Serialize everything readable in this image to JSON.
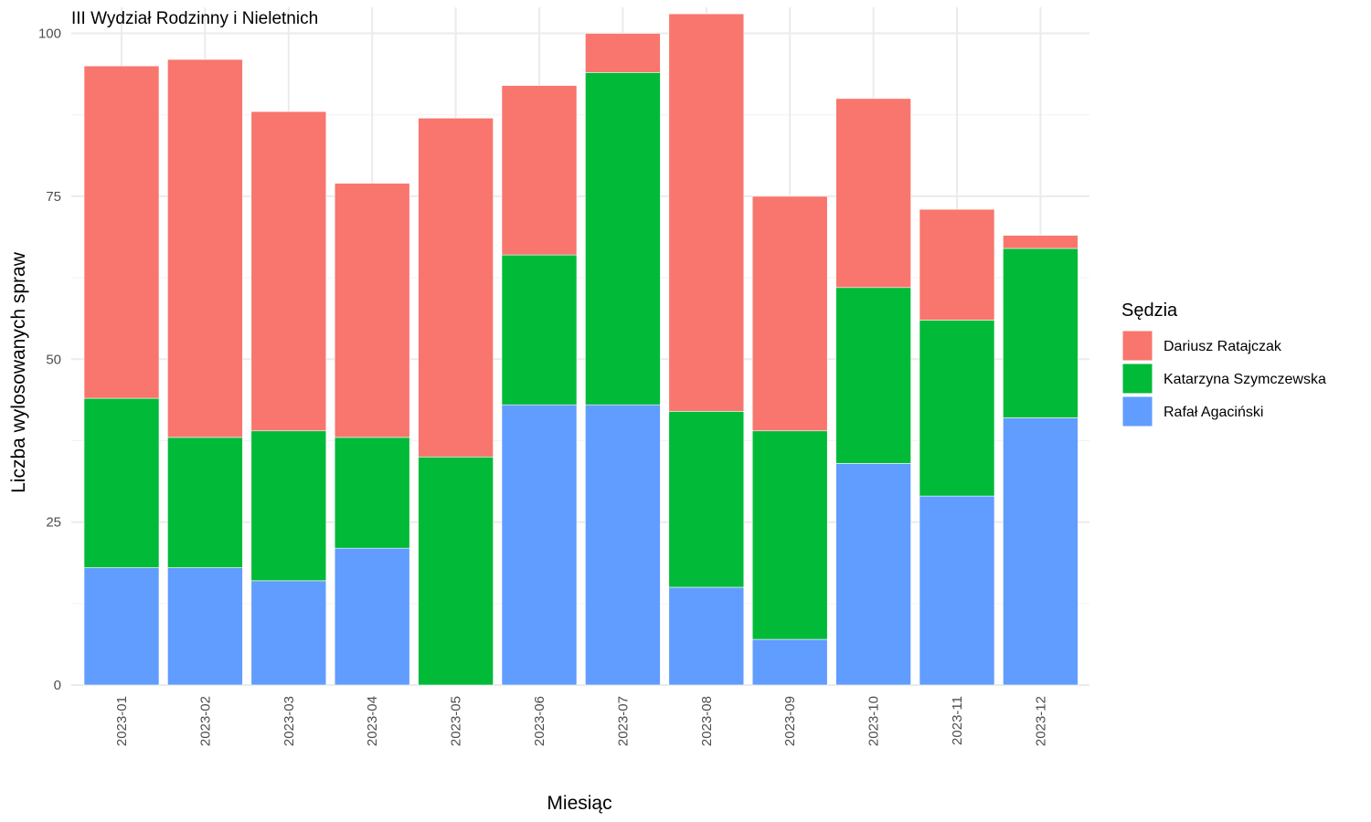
{
  "chart_data": {
    "type": "bar",
    "stacked": true,
    "title": "III Wydział Rodzinny i Nieletnich",
    "xlabel": "Miesiąc",
    "ylabel": "Liczba wylosowanych spraw",
    "ylim": [
      0,
      104
    ],
    "yticks": [
      0,
      25,
      50,
      75,
      100
    ],
    "grid": true,
    "legend_title": "Sędzia",
    "legend_position": "right",
    "categories": [
      "2023-01",
      "2023-02",
      "2023-03",
      "2023-04",
      "2023-05",
      "2023-06",
      "2023-07",
      "2023-08",
      "2023-09",
      "2023-10",
      "2023-11",
      "2023-12"
    ],
    "series": [
      {
        "name": "Rafał Agaciński",
        "color": "#619CFF",
        "values": [
          18,
          18,
          16,
          21,
          0,
          43,
          43,
          15,
          7,
          34,
          29,
          41
        ]
      },
      {
        "name": "Katarzyna Szymczewska",
        "color": "#00BA38",
        "values": [
          26,
          20,
          23,
          17,
          35,
          23,
          51,
          27,
          32,
          27,
          27,
          26
        ]
      },
      {
        "name": "Dariusz Ratajczak",
        "color": "#F8766D",
        "values": [
          51,
          58,
          49,
          39,
          52,
          26,
          6,
          61,
          36,
          29,
          17,
          2
        ]
      }
    ],
    "legend_order": [
      "Dariusz Ratajczak",
      "Katarzyna Szymczewska",
      "Rafał Agaciński"
    ]
  }
}
